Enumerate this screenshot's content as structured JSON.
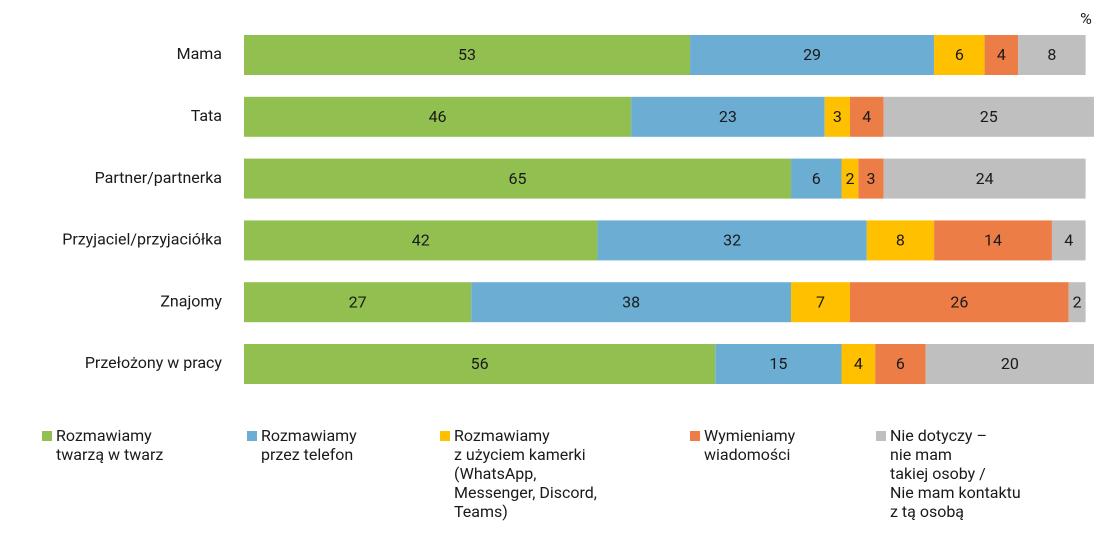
{
  "chart_data": {
    "type": "stacked-bar-horizontal",
    "unit": "%",
    "categories": [
      "Mama",
      "Tata",
      "Partner/partnerka",
      "Przyjaciel/przyjaciółka",
      "Znajomy",
      "Przełożony  w pracy"
    ],
    "series": [
      {
        "name": "Rozmawiamy\ntwarzą w twarz",
        "color": "#92c050",
        "values": [
          53,
          46,
          65,
          42,
          27,
          56
        ]
      },
      {
        "name": "Rozmawiamy\nprzez telefon",
        "color": "#6caed3",
        "values": [
          29,
          23,
          6,
          32,
          38,
          15
        ]
      },
      {
        "name": "Rozmawiamy\nz użyciem kamerki\n(WhatsApp,\nMessenger, Discord,\nTeams)",
        "color": "#ffc000",
        "values": [
          6,
          3,
          2,
          8,
          7,
          4
        ]
      },
      {
        "name": "Wymieniamy\nwiadomości",
        "color": "#ed7d47",
        "values": [
          4,
          4,
          3,
          14,
          26,
          6
        ]
      },
      {
        "name": "Nie dotyczy –\nnie mam\ntakiej osoby /\nNie mam kontaktu\nz tą osobą",
        "color": "#bfbfbf",
        "values": [
          8,
          25,
          24,
          4,
          2,
          20
        ]
      }
    ]
  }
}
